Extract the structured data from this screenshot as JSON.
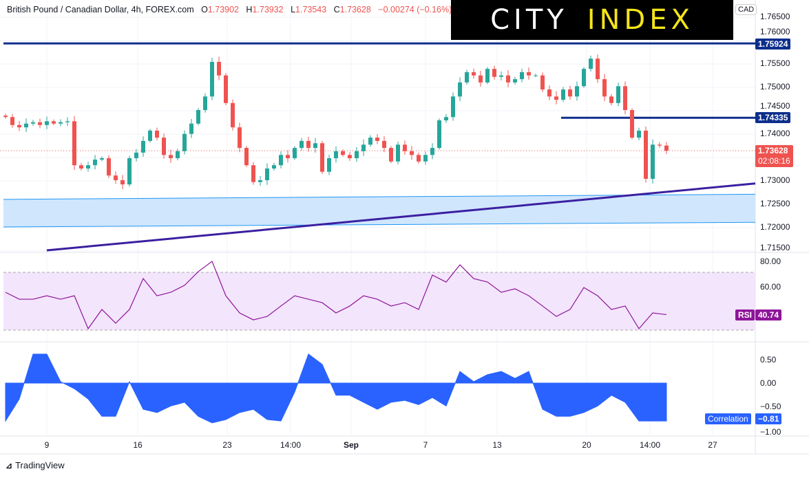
{
  "header": {
    "symbol": "British Pound / Canadian Dollar, 4h, FOREX.com",
    "o_label": "O",
    "o": "1.73902",
    "h_label": "H",
    "h": "1.73932",
    "l_label": "L",
    "l": "1.73543",
    "c_label": "C",
    "c": "1.73628",
    "change": "−0.00274 (−0.16%)"
  },
  "logo": {
    "word1": "CITY",
    "word2": "INDEX"
  },
  "currency": "CAD",
  "colors": {
    "up": "#26a69a",
    "down": "#ef5350",
    "level": "#0d2e8c",
    "trend": "#3b1fa0",
    "zone": "#cfe6fd",
    "zone_border": "#2196f3",
    "rsi": "#8e1599",
    "rsi_band": "#f3e5fc",
    "corr": "#2962ff"
  },
  "price_axis": {
    "ticks": [
      "1.76500",
      "1.76000",
      "1.75500",
      "1.75000",
      "1.74500",
      "1.74000",
      "1.73000",
      "1.72500",
      "1.72000",
      "1.71500"
    ]
  },
  "levels": {
    "resistance": "1.75924",
    "support": "1.74335",
    "last_price": "1.73628",
    "countdown": "02:08:16"
  },
  "rsi": {
    "label": "RSI",
    "value": "40.74",
    "ticks": [
      "80.00",
      "60.00"
    ]
  },
  "correlation": {
    "label": "Correlation",
    "value": "−0.81",
    "ticks": [
      "0.50",
      "0.00",
      "−0.50",
      "−1.00"
    ]
  },
  "x_axis": {
    "ticks": [
      "9",
      "16",
      "23",
      "14:00",
      "Sep",
      "7",
      "13",
      "20",
      "14:00",
      "27"
    ]
  },
  "footer": {
    "brand": "TradingView"
  },
  "chart_data": [
    {
      "type": "candlestick",
      "title": "British Pound / Canadian Dollar, 4h, FOREX.com",
      "ylim": [
        1.715,
        1.765
      ],
      "closes": [
        1.7435,
        1.7418,
        1.7413,
        1.7421,
        1.7424,
        1.7418,
        1.7426,
        1.7421,
        1.7424,
        1.7426,
        1.7332,
        1.7325,
        1.7332,
        1.7344,
        1.7347,
        1.731,
        1.73,
        1.7291,
        1.7347,
        1.7359,
        1.7384,
        1.7406,
        1.7391,
        1.7354,
        1.7347,
        1.7362,
        1.7399,
        1.7421,
        1.745,
        1.7479,
        1.7553,
        1.7524,
        1.7465,
        1.7413,
        1.7369,
        1.7332,
        1.7296,
        1.73,
        1.7325,
        1.7332,
        1.7354,
        1.7347,
        1.7369,
        1.7384,
        1.7369,
        1.7379,
        1.7318,
        1.7347,
        1.7362,
        1.7354,
        1.7347,
        1.7362,
        1.7376,
        1.7391,
        1.7384,
        1.7369,
        1.734,
        1.7376,
        1.7362,
        1.7354,
        1.734,
        1.7354,
        1.7369,
        1.7428,
        1.7435,
        1.7479,
        1.7509,
        1.7531,
        1.7524,
        1.7509,
        1.7538,
        1.7521,
        1.7524,
        1.7509,
        1.7516,
        1.7531,
        1.7524,
        1.7524,
        1.7494,
        1.7479,
        1.7472,
        1.7494,
        1.7479,
        1.7501,
        1.7538,
        1.756,
        1.7516,
        1.7479,
        1.7465,
        1.7501,
        1.745,
        1.7391,
        1.7406,
        1.7303,
        1.7376,
        1.7374,
        1.7363
      ],
      "horizontal_levels": [
        1.75924,
        1.74335
      ],
      "trendline": {
        "from": 1.715,
        "to": 1.7293
      },
      "zone": {
        "top": [
          1.7259,
          1.727
        ],
        "bottom": [
          1.72,
          1.721
        ]
      }
    },
    {
      "type": "line",
      "name": "RSI",
      "ylim": [
        25,
        82
      ],
      "band": [
        30,
        70
      ],
      "values": [
        56.2,
        51.4,
        51.4,
        53.8,
        51.4,
        53.8,
        31,
        44.3,
        34.8,
        44.3,
        65.7,
        53.8,
        56.2,
        61,
        70.5,
        77.6,
        53.8,
        41.9,
        37.1,
        39.5,
        46.7,
        53.8,
        51.4,
        49,
        41.9,
        46.7,
        53.8,
        51.4,
        46.7,
        49,
        44.3,
        68.1,
        63.3,
        75.2,
        65.7,
        63.3,
        56.2,
        58.6,
        53.8,
        46.7,
        39.5,
        44.3,
        59.5,
        53.8,
        44.3,
        46.7,
        31,
        41.9,
        40.74
      ]
    },
    {
      "type": "area",
      "name": "Correlation",
      "ylim": [
        -1.05,
        0.8
      ],
      "values": [
        -0.81,
        -0.34,
        0.62,
        0.62,
        0.03,
        -0.12,
        -0.34,
        -0.71,
        -0.71,
        0.03,
        -0.56,
        -0.63,
        -0.49,
        -0.41,
        -0.71,
        -0.85,
        -0.78,
        -0.63,
        -0.56,
        -0.78,
        -0.81,
        -0.19,
        0.62,
        0.4,
        -0.26,
        -0.26,
        -0.41,
        -0.56,
        -0.41,
        -0.37,
        -0.46,
        -0.31,
        -0.49,
        0.25,
        0.03,
        0.18,
        0.25,
        0.1,
        0.25,
        -0.56,
        -0.71,
        -0.71,
        -0.63,
        -0.49,
        -0.26,
        -0.41,
        -0.81,
        -0.81,
        -0.81
      ]
    }
  ]
}
